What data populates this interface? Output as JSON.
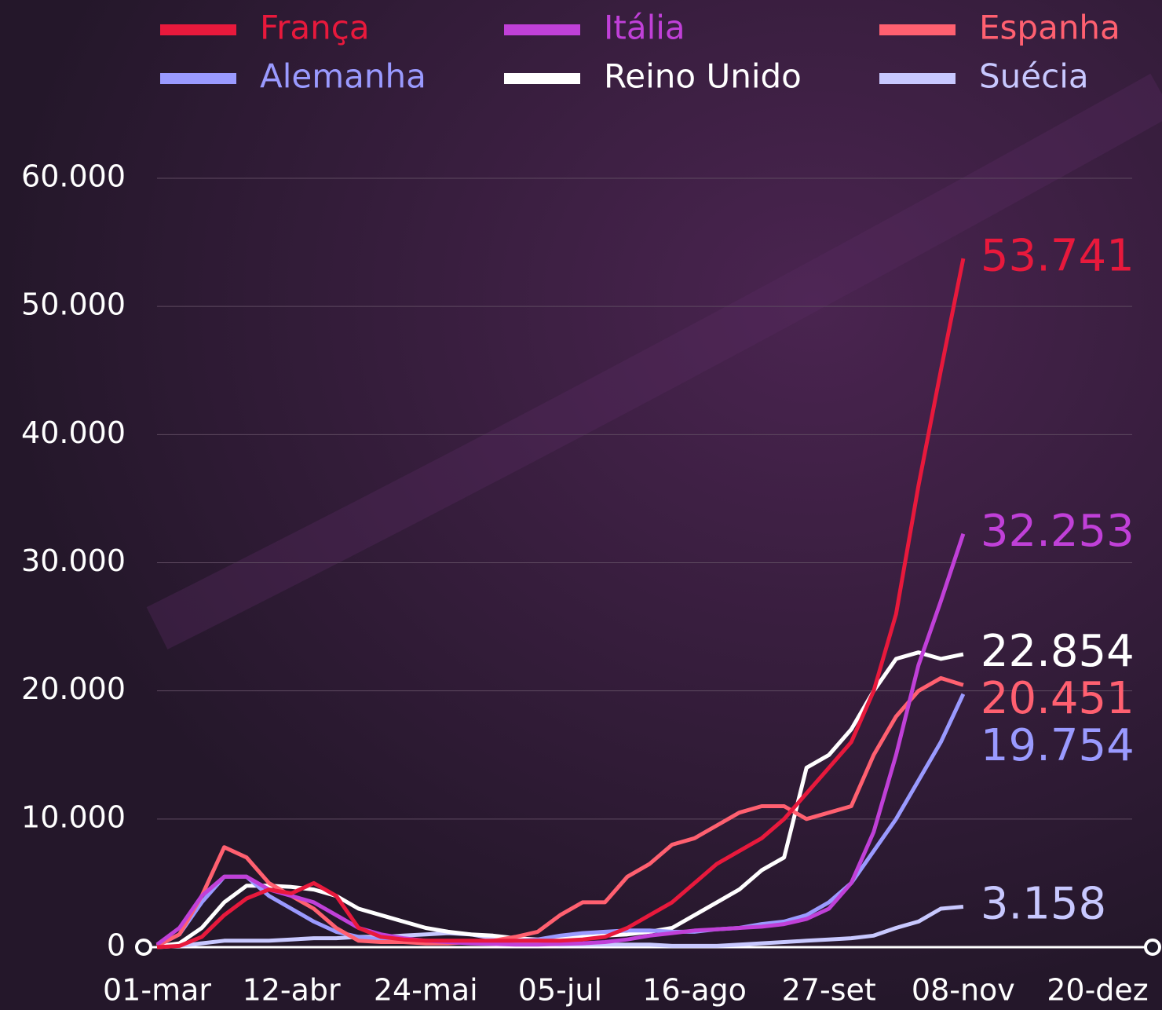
{
  "chart_data": {
    "type": "line",
    "x": [
      "01-mar",
      null,
      null,
      null,
      null,
      null,
      "12-abr",
      null,
      null,
      null,
      null,
      null,
      "24-mai",
      null,
      null,
      null,
      null,
      null,
      "05-jul",
      null,
      null,
      null,
      null,
      null,
      "16-ago",
      null,
      null,
      null,
      null,
      null,
      "27-set",
      null,
      null,
      null,
      null,
      null,
      "08-nov",
      null,
      null,
      null,
      null,
      null,
      "20-dez"
    ],
    "ylim": [
      0,
      60000
    ],
    "yticks": [
      0,
      {
        "value": 10000,
        "label": "10.000"
      },
      {
        "value": 20000,
        "label": "20.000"
      },
      {
        "value": 30000,
        "label": "30.000"
      },
      {
        "value": 40000,
        "label": "40.000"
      },
      {
        "value": 50000,
        "label": "50.000"
      },
      {
        "value": 60000,
        "label": "60.000"
      }
    ],
    "grid": true,
    "legend": "top",
    "series": [
      {
        "name": "França",
        "color": "#e8193c",
        "values": [
          0,
          100,
          800,
          2500,
          3800,
          4500,
          4200,
          5000,
          4000,
          1500,
          800,
          600,
          500,
          500,
          500,
          500,
          500,
          500,
          500,
          600,
          800,
          1500,
          2500,
          3500,
          5000,
          6500,
          7500,
          8500,
          10000,
          12000,
          14000,
          16000,
          20000,
          26000,
          36000,
          45000,
          53741,
          null,
          null,
          null,
          null,
          null,
          null
        ],
        "value_labels": [
          null,
          null,
          null,
          null,
          null,
          null,
          null,
          null,
          null,
          null,
          null,
          null,
          null,
          null,
          null,
          null,
          null,
          null,
          null,
          null,
          null,
          null,
          null,
          null,
          null,
          null,
          null,
          null,
          null,
          null,
          null,
          null,
          null,
          null,
          null,
          null,
          "53.741",
          null,
          null,
          null,
          null,
          null,
          null
        ]
      },
      {
        "name": "Itália",
        "color": "#c040d8",
        "values": [
          200,
          1500,
          4000,
          5500,
          5500,
          4500,
          4000,
          3500,
          2500,
          1500,
          1000,
          700,
          500,
          400,
          300,
          250,
          200,
          200,
          250,
          300,
          400,
          600,
          900,
          1100,
          1300,
          1400,
          1500,
          1600,
          1800,
          2200,
          3000,
          5000,
          9000,
          15000,
          22000,
          27000,
          32253,
          null,
          null,
          null,
          null,
          null,
          null
        ],
        "value_labels": [
          null,
          null,
          null,
          null,
          null,
          null,
          null,
          null,
          null,
          null,
          null,
          null,
          null,
          null,
          null,
          null,
          null,
          null,
          null,
          null,
          null,
          null,
          null,
          null,
          null,
          null,
          null,
          null,
          null,
          null,
          null,
          null,
          null,
          null,
          null,
          null,
          "32.253",
          null,
          null,
          null,
          null,
          null,
          null
        ]
      },
      {
        "name": "Espanha",
        "color": "#ff6070",
        "values": [
          100,
          1000,
          4000,
          7800,
          7000,
          5000,
          4000,
          3000,
          1500,
          500,
          400,
          400,
          300,
          300,
          400,
          500,
          800,
          1200,
          2500,
          3500,
          3500,
          5500,
          6500,
          8000,
          8500,
          9500,
          10500,
          11000,
          11000,
          10000,
          10500,
          11000,
          15000,
          18000,
          20000,
          21000,
          20451,
          null,
          null,
          null,
          null,
          null,
          null
        ],
        "value_labels": [
          null,
          null,
          null,
          null,
          null,
          null,
          null,
          null,
          null,
          null,
          null,
          null,
          null,
          null,
          null,
          null,
          null,
          null,
          null,
          null,
          null,
          null,
          null,
          null,
          null,
          null,
          null,
          null,
          null,
          null,
          null,
          null,
          null,
          null,
          null,
          null,
          "20.451",
          null,
          null,
          null,
          null,
          null,
          null
        ]
      },
      {
        "name": "Alemanha",
        "color": "#9a9aff",
        "values": [
          100,
          1000,
          3500,
          5500,
          5500,
          4000,
          3000,
          2000,
          1200,
          800,
          600,
          500,
          400,
          400,
          400,
          450,
          500,
          600,
          900,
          1100,
          1200,
          1300,
          1300,
          1200,
          1200,
          1400,
          1500,
          1800,
          2000,
          2500,
          3500,
          5000,
          7500,
          10000,
          13000,
          16000,
          19754,
          null,
          null,
          null,
          null,
          null,
          null
        ],
        "value_labels": [
          null,
          null,
          null,
          null,
          null,
          null,
          null,
          null,
          null,
          null,
          null,
          null,
          null,
          null,
          null,
          null,
          null,
          null,
          null,
          null,
          null,
          null,
          null,
          null,
          null,
          null,
          null,
          null,
          null,
          null,
          null,
          null,
          null,
          null,
          null,
          null,
          "19.754",
          null,
          null,
          null,
          null,
          null,
          null
        ]
      },
      {
        "name": "Reino Unido",
        "color": "#ffffff",
        "values": [
          50,
          300,
          1500,
          3500,
          4800,
          4800,
          4700,
          4500,
          4000,
          3000,
          2500,
          2000,
          1500,
          1200,
          1000,
          900,
          700,
          600,
          700,
          800,
          900,
          1000,
          1200,
          1500,
          2500,
          3500,
          4500,
          6000,
          7000,
          14000,
          15000,
          17000,
          20000,
          22500,
          23000,
          22500,
          22854,
          null,
          null,
          null,
          null,
          null,
          null
        ],
        "value_labels": [
          null,
          null,
          null,
          null,
          null,
          null,
          null,
          null,
          null,
          null,
          null,
          null,
          null,
          null,
          null,
          null,
          null,
          null,
          null,
          null,
          null,
          null,
          null,
          null,
          null,
          null,
          null,
          null,
          null,
          null,
          null,
          null,
          null,
          null,
          null,
          null,
          "22.854",
          null,
          null,
          null,
          null,
          null,
          null
        ]
      },
      {
        "name": "Suécia",
        "color": "#c8c8ff",
        "values": [
          0,
          100,
          300,
          500,
          500,
          500,
          600,
          700,
          700,
          800,
          800,
          900,
          1000,
          1100,
          1000,
          700,
          400,
          300,
          200,
          200,
          200,
          200,
          200,
          100,
          100,
          100,
          200,
          300,
          400,
          500,
          600,
          700,
          900,
          1500,
          2000,
          3000,
          3158,
          null,
          null,
          null,
          null,
          null,
          null
        ],
        "value_labels": [
          null,
          null,
          null,
          null,
          null,
          null,
          null,
          null,
          null,
          null,
          null,
          null,
          null,
          null,
          null,
          null,
          null,
          null,
          null,
          null,
          null,
          null,
          null,
          null,
          null,
          null,
          null,
          null,
          null,
          null,
          null,
          null,
          null,
          null,
          null,
          null,
          "3.158",
          null,
          null,
          null,
          null,
          null,
          null
        ]
      }
    ]
  }
}
